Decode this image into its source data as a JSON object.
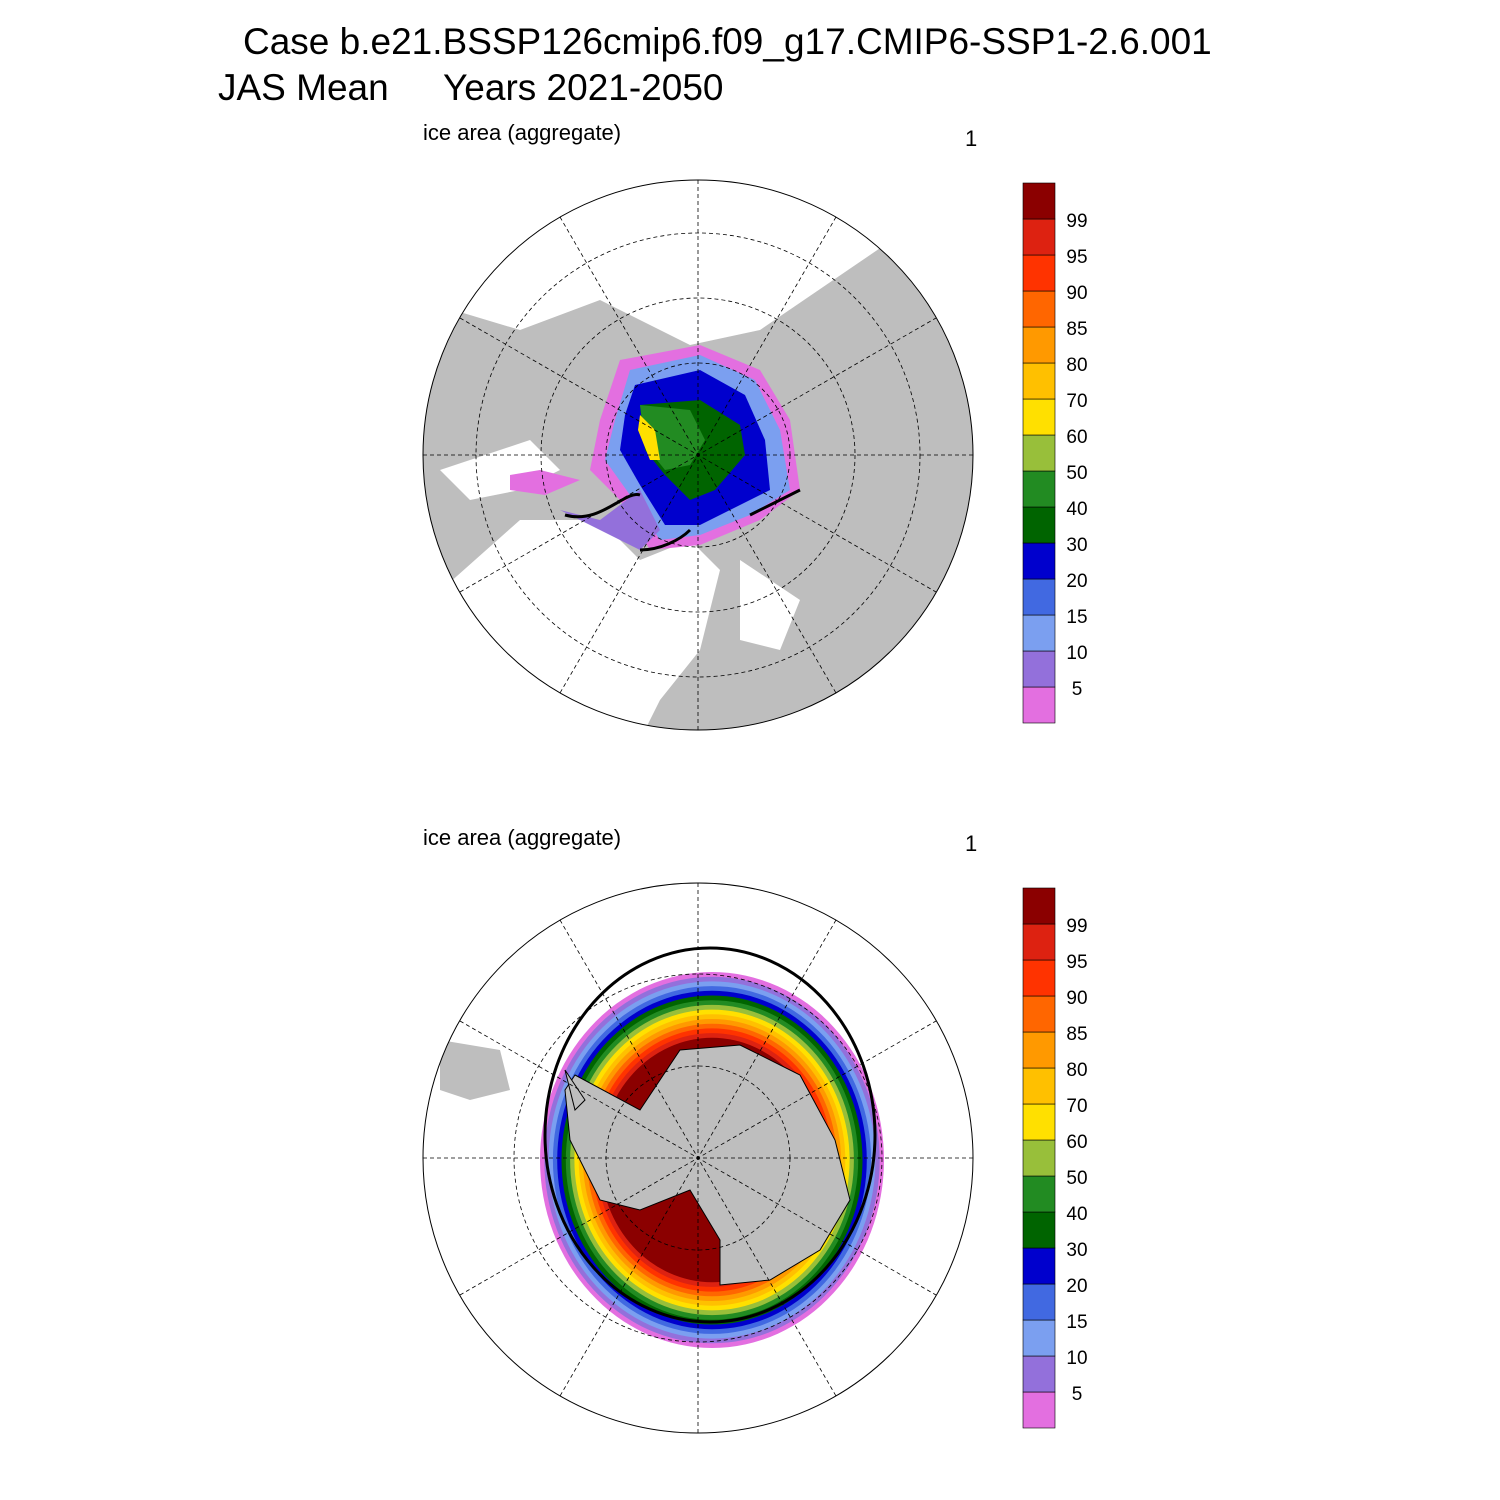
{
  "title": {
    "line1": "Case b.e21.BSSP126cmip6.f09_g17.CMIP6-SSP1-2.6.001",
    "line2_left": "JAS Mean",
    "line2_right": "Years 2021-2050"
  },
  "panels": [
    {
      "left_label": "ice area  (aggregate)",
      "right_label": "1"
    },
    {
      "left_label": "ice area  (aggregate)",
      "right_label": "1"
    }
  ],
  "colorbar": {
    "levels": [
      5,
      10,
      15,
      20,
      30,
      40,
      50,
      60,
      70,
      80,
      85,
      90,
      95,
      99
    ],
    "colors": [
      "#e36fe0",
      "#9370db",
      "#7b9ff0",
      "#4169e1",
      "#0000cd",
      "#006400",
      "#228b22",
      "#98bf3a",
      "#ffe000",
      "#ffc000",
      "#ff9900",
      "#ff6600",
      "#ff3300",
      "#dd2211",
      "#8b0000"
    ]
  }
}
